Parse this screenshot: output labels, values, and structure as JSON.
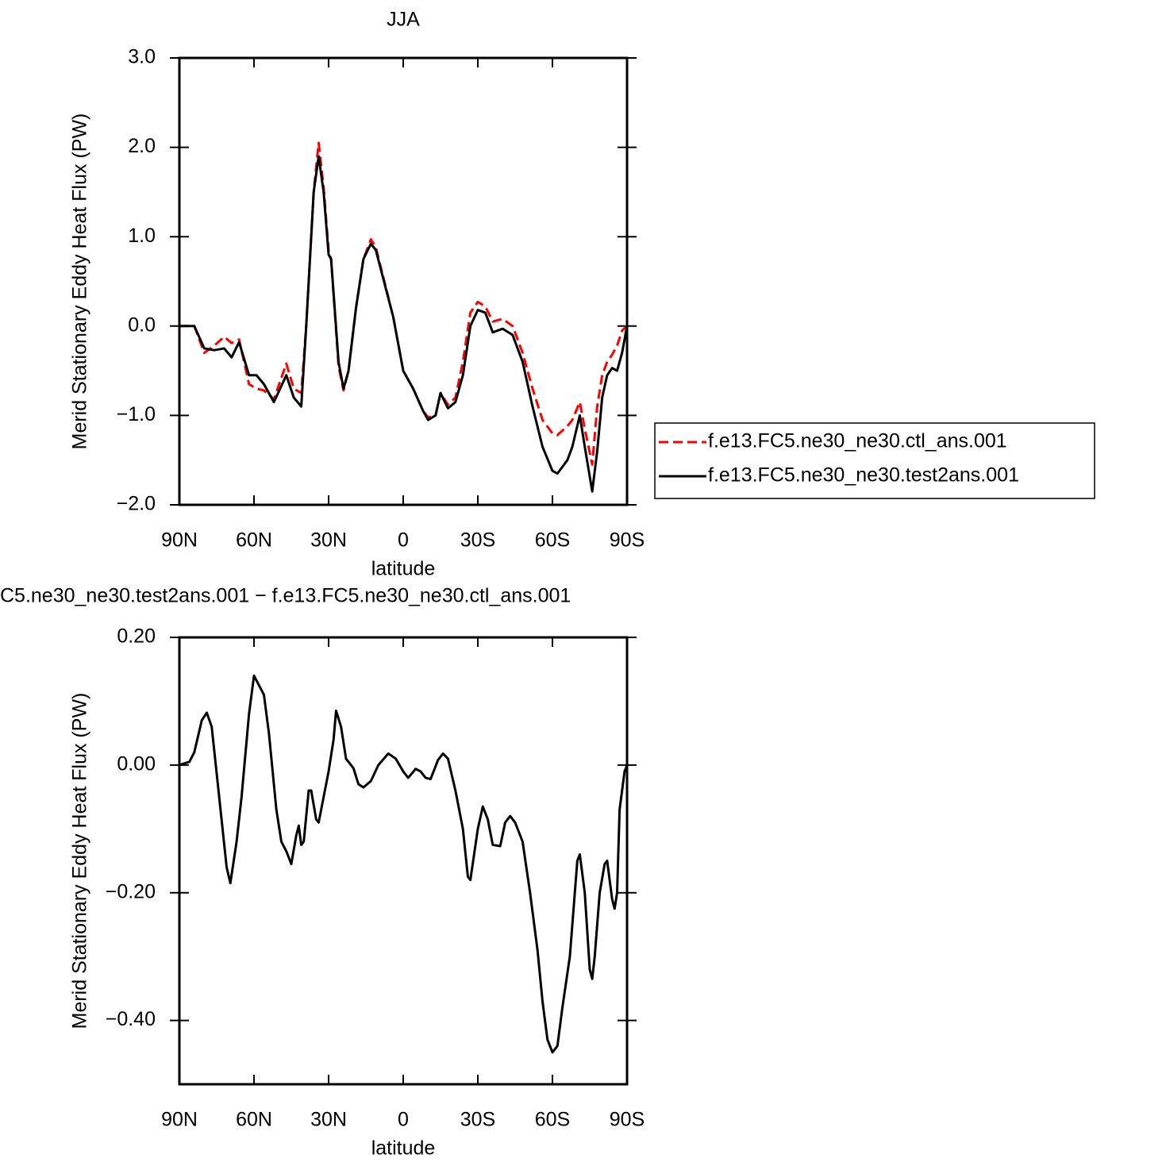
{
  "chart_data": [
    {
      "type": "line",
      "title": "JJA",
      "xlabel": "latitude",
      "ylabel": "Merid Stationary Eddy Heat Flux (PW)",
      "x": [
        90,
        84,
        80,
        76,
        72,
        69,
        66,
        62,
        59,
        56,
        52,
        47,
        44,
        41,
        39,
        36,
        34,
        32,
        30,
        29,
        26,
        24,
        22,
        19,
        16,
        13,
        11,
        4,
        0,
        -4,
        -8,
        -10,
        -13,
        -15,
        -18,
        -21,
        -24,
        -27,
        -30,
        -33,
        -36,
        -40,
        -44,
        -48,
        -52,
        -56,
        -60,
        -62,
        -66,
        -68,
        -71,
        -73,
        -76,
        -78,
        -80,
        -82,
        -84,
        -86,
        -88,
        -90
      ],
      "series": [
        {
          "name": "f.e13.FC5.ne30_ne30.ctl_ans.001",
          "color": "#ff0000",
          "style": "dashed",
          "values": [
            0,
            0,
            -0.3,
            -0.22,
            -0.12,
            -0.19,
            -0.15,
            -0.65,
            -0.7,
            -0.72,
            -0.82,
            -0.42,
            -0.7,
            -0.75,
            0,
            1.5,
            2.05,
            1.55,
            0.85,
            0.75,
            -0.45,
            -0.72,
            -0.5,
            0.2,
            0.75,
            0.97,
            0.88,
            0.1,
            -0.5,
            -0.7,
            -0.95,
            -1.02,
            -1.0,
            -0.75,
            -0.88,
            -0.8,
            -0.4,
            0.15,
            0.27,
            0.22,
            0.05,
            0.08,
            0.0,
            -0.3,
            -0.7,
            -1.05,
            -1.2,
            -1.22,
            -1.12,
            -1.05,
            -0.85,
            -1.15,
            -1.55,
            -0.9,
            -0.55,
            -0.4,
            -0.32,
            -0.22,
            -0.05,
            0
          ]
        },
        {
          "name": "f.e13.FC5.ne30_ne30.test2ans.001",
          "color": "#000000",
          "style": "solid",
          "values": [
            0,
            0,
            -0.25,
            -0.27,
            -0.25,
            -0.35,
            -0.18,
            -0.55,
            -0.55,
            -0.65,
            -0.85,
            -0.55,
            -0.8,
            -0.9,
            0,
            1.5,
            1.9,
            1.5,
            0.8,
            0.75,
            -0.4,
            -0.7,
            -0.5,
            0.2,
            0.75,
            0.92,
            0.85,
            0.1,
            -0.5,
            -0.7,
            -0.95,
            -1.05,
            -1.0,
            -0.75,
            -0.92,
            -0.85,
            -0.55,
            0.0,
            0.18,
            0.15,
            -0.07,
            -0.03,
            -0.1,
            -0.4,
            -0.9,
            -1.35,
            -1.62,
            -1.65,
            -1.5,
            -1.35,
            -1.0,
            -1.35,
            -1.85,
            -1.4,
            -0.8,
            -0.55,
            -0.47,
            -0.5,
            -0.3,
            0
          ]
        }
      ],
      "xlim": [
        90,
        -90
      ],
      "xticks": [
        {
          "value": 90,
          "label": "90N"
        },
        {
          "value": 60,
          "label": "60N"
        },
        {
          "value": 30,
          "label": "30N"
        },
        0,
        {
          "value": -30,
          "label": "30S"
        },
        {
          "value": -60,
          "label": "60S"
        },
        {
          "value": -90,
          "label": "90S"
        }
      ],
      "ylim": [
        -2,
        3
      ],
      "yticks": [
        {
          "value": 3,
          "label": "3.0"
        },
        {
          "value": 2,
          "label": "2.0"
        },
        {
          "value": 1,
          "label": "1.0"
        },
        {
          "value": 0,
          "label": "0.0"
        },
        {
          "value": -1,
          "label": "−1.0"
        },
        {
          "value": -2,
          "label": "−2.0"
        }
      ],
      "legend": "right"
    },
    {
      "type": "line",
      "title": "C5.ne30_ne30.test2ans.001  −  f.e13.FC5.ne30_ne30.ctl_ans.001",
      "xlabel": "latitude",
      "ylabel": "Merid Stationary Eddy Heat Flux (PW)",
      "x": [
        90,
        86,
        84,
        81,
        79,
        77,
        74,
        71,
        69.5,
        67,
        65,
        62,
        60,
        58,
        56,
        54,
        51,
        49,
        47,
        45,
        43,
        42,
        41,
        40,
        38,
        37,
        35,
        34,
        32,
        30,
        28,
        27,
        25,
        23,
        20,
        18,
        16,
        13,
        10,
        6,
        3,
        0,
        -2,
        -5,
        -7,
        -9,
        -11,
        -14,
        -16,
        -18,
        -21,
        -24,
        -26,
        -27,
        -30,
        -32,
        -34,
        -36,
        -39,
        -41,
        -43,
        -45,
        -48,
        -51,
        -54,
        -56,
        -58,
        -60,
        -62,
        -64,
        -67,
        -70,
        -71,
        -73,
        -75,
        -76,
        -77,
        -79,
        -81,
        -82,
        -84,
        -85,
        -86,
        -87,
        -89,
        -90
      ],
      "series": [
        {
          "color": "#000000",
          "style": "solid",
          "values": [
            0,
            0.005,
            0.02,
            0.07,
            0.082,
            0.06,
            -0.05,
            -0.16,
            -0.185,
            -0.12,
            -0.05,
            0.08,
            0.14,
            0.125,
            0.11,
            0.05,
            -0.07,
            -0.12,
            -0.135,
            -0.155,
            -0.11,
            -0.095,
            -0.125,
            -0.12,
            -0.04,
            -0.04,
            -0.085,
            -0.09,
            -0.05,
            -0.01,
            0.04,
            0.085,
            0.06,
            0.01,
            -0.005,
            -0.03,
            -0.035,
            -0.025,
            0.0,
            0.018,
            0.01,
            -0.01,
            -0.02,
            -0.006,
            -0.01,
            -0.02,
            -0.022,
            0.008,
            0.018,
            0.01,
            -0.04,
            -0.1,
            -0.175,
            -0.18,
            -0.1,
            -0.065,
            -0.085,
            -0.125,
            -0.127,
            -0.09,
            -0.08,
            -0.09,
            -0.12,
            -0.2,
            -0.29,
            -0.37,
            -0.43,
            -0.45,
            -0.44,
            -0.38,
            -0.3,
            -0.15,
            -0.14,
            -0.2,
            -0.32,
            -0.335,
            -0.3,
            -0.2,
            -0.155,
            -0.15,
            -0.21,
            -0.225,
            -0.2,
            -0.07,
            -0.01,
            0
          ]
        }
      ],
      "xlim": [
        90,
        -90
      ],
      "xticks": [
        {
          "value": 90,
          "label": "90N"
        },
        {
          "value": 60,
          "label": "60N"
        },
        {
          "value": 30,
          "label": "30N"
        },
        0,
        {
          "value": -30,
          "label": "30S"
        },
        {
          "value": -60,
          "label": "60S"
        },
        {
          "value": -90,
          "label": "90S"
        }
      ],
      "ylim": [
        -0.5,
        0.2
      ],
      "yticks": [
        {
          "value": 0.2,
          "label": "0.20"
        },
        {
          "value": 0,
          "label": "0.00"
        },
        {
          "value": -0.2,
          "label": "−0.20"
        },
        {
          "value": -0.4,
          "label": "−0.40"
        }
      ]
    }
  ]
}
